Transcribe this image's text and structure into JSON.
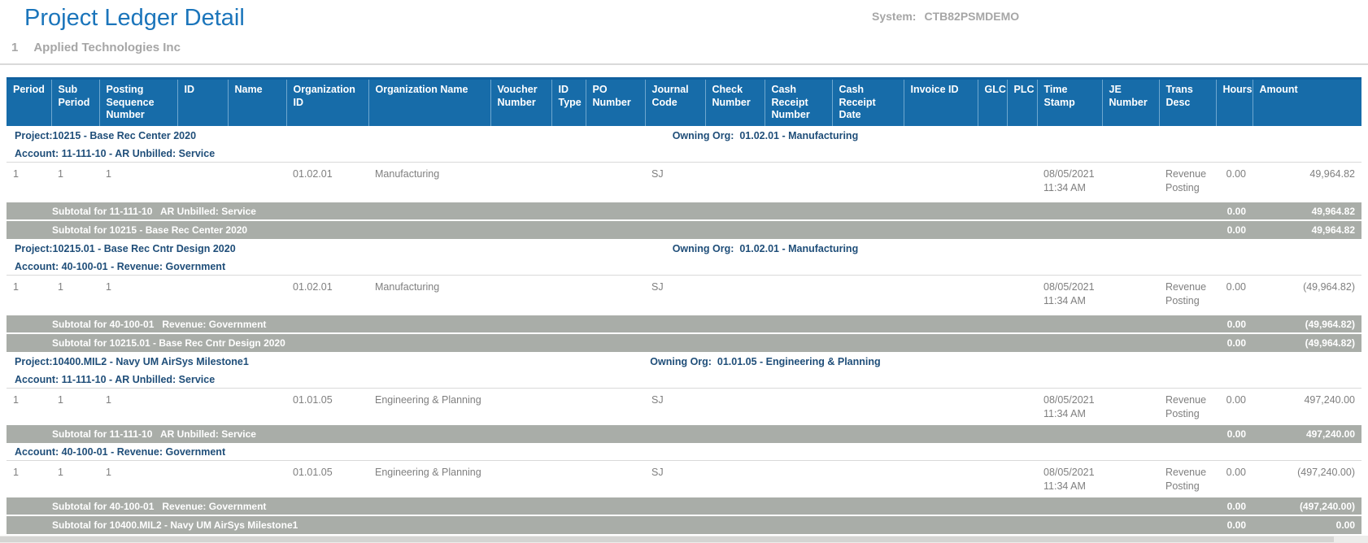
{
  "colors": {
    "title-blue": "#1b75bb",
    "header-blue": "#176ca9",
    "header-separator": "#6ea7cf",
    "header-topline": "#10609e",
    "navy-text": "#1f4e79",
    "subtotal-gray": "#a9ada8",
    "data-text": "#7f7f7f",
    "muted-gray": "#a6a6a6",
    "divider-gray": "#d9d9d9"
  },
  "page": {
    "title": "Project Ledger Detail",
    "system_label": "System:",
    "system_value": "CTB82PSMDEMO",
    "org_number": "1",
    "org_name": "Applied Technologies Inc"
  },
  "table": {
    "columns": [
      "Period",
      "Sub Period",
      "Posting Sequence Number",
      "ID",
      "Name",
      "Organization ID",
      "Organization Name",
      "Voucher Number",
      "ID Type",
      "PO Number",
      "Journal Code",
      "Check Number",
      "Cash Receipt Number",
      "Cash Receipt Date",
      "Invoice ID",
      "GLC",
      "PLC",
      "Time Stamp",
      "JE Number",
      "Trans Desc",
      "Hours",
      "Amount"
    ],
    "rows": [
      {
        "type": "project",
        "project": "Project:10215 - Base Rec Center 2020",
        "owning_org": "Owning Org:  01.02.01 - Manufacturing"
      },
      {
        "type": "account",
        "label": "Account: 11-111-10 - AR Unbilled: Service"
      },
      {
        "type": "data",
        "cells": [
          "1",
          "1",
          "1",
          "",
          "",
          "01.02.01",
          "Manufacturing",
          "",
          "",
          "",
          "SJ",
          "",
          "",
          "",
          "",
          "",
          "",
          "08/05/2021 11:34 AM",
          "",
          "Revenue Posting",
          "0.00",
          "49,964.82"
        ]
      },
      {
        "type": "subtotal",
        "label": "Subtotal for 11-111-10   AR Unbilled: Service",
        "hours": "0.00",
        "amount": "49,964.82"
      },
      {
        "type": "subtotal",
        "label": "Subtotal for 10215 - Base Rec Center 2020",
        "hours": "0.00",
        "amount": "49,964.82"
      },
      {
        "type": "project",
        "project": "Project:10215.01 - Base Rec Cntr Design 2020",
        "owning_org": "Owning Org:  01.02.01 - Manufacturing"
      },
      {
        "type": "account",
        "label": "Account: 40-100-01 - Revenue: Government"
      },
      {
        "type": "data",
        "cells": [
          "1",
          "1",
          "1",
          "",
          "",
          "01.02.01",
          "Manufacturing",
          "",
          "",
          "",
          "SJ",
          "",
          "",
          "",
          "",
          "",
          "",
          "08/05/2021 11:34 AM",
          "",
          "Revenue Posting",
          "0.00",
          "(49,964.82)"
        ]
      },
      {
        "type": "subtotal",
        "label": "Subtotal for 40-100-01   Revenue: Government",
        "hours": "0.00",
        "amount": "(49,964.82)"
      },
      {
        "type": "subtotal",
        "label": "Subtotal for 10215.01 - Base Rec Cntr Design 2020",
        "hours": "0.00",
        "amount": "(49,964.82)"
      },
      {
        "type": "project",
        "project": "Project:10400.MIL2 - Navy UM AirSys Milestone1",
        "owning_org": "Owning Org:  01.01.05 - Engineering & Planning"
      },
      {
        "type": "account",
        "label": "Account: 11-111-10 - AR Unbilled: Service"
      },
      {
        "type": "data",
        "short": true,
        "cells": [
          "1",
          "1",
          "1",
          "",
          "",
          "01.01.05",
          "Engineering & Planning",
          "",
          "",
          "",
          "SJ",
          "",
          "",
          "",
          "",
          "",
          "",
          "08/05/2021 11:34 AM",
          "",
          "Revenue Posting",
          "0.00",
          "497,240.00"
        ]
      },
      {
        "type": "subtotal",
        "label": "Subtotal for 11-111-10   AR Unbilled: Service",
        "hours": "0.00",
        "amount": "497,240.00"
      },
      {
        "type": "account",
        "label": "Account: 40-100-01 - Revenue: Government"
      },
      {
        "type": "data",
        "short": true,
        "cells": [
          "1",
          "1",
          "1",
          "",
          "",
          "01.01.05",
          "Engineering & Planning",
          "",
          "",
          "",
          "SJ",
          "",
          "",
          "",
          "",
          "",
          "",
          "08/05/2021 11:34 AM",
          "",
          "Revenue Posting",
          "0.00",
          "(497,240.00)"
        ]
      },
      {
        "type": "subtotal",
        "label": "Subtotal for 40-100-01   Revenue: Government",
        "hours": "0.00",
        "amount": "(497,240.00)"
      },
      {
        "type": "subtotal",
        "label": "Subtotal for 10400.MIL2 - Navy UM AirSys Milestone1",
        "hours": "0.00",
        "amount": "0.00"
      }
    ]
  }
}
